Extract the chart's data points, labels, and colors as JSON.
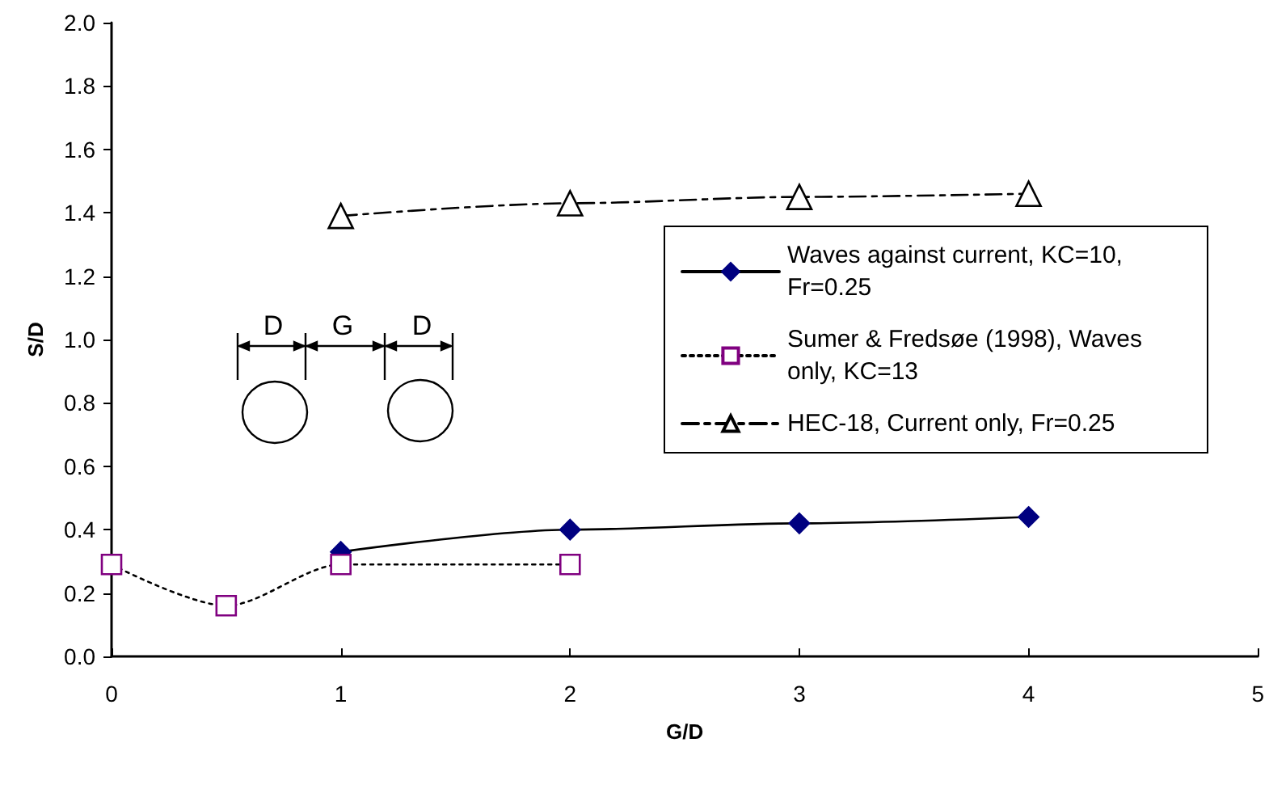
{
  "chart_data": {
    "type": "line",
    "xlabel": "G/D",
    "ylabel": "S/D",
    "xlim": [
      0,
      5
    ],
    "xticks": [
      0,
      1,
      2,
      3,
      4,
      5
    ],
    "ylim": [
      0,
      2
    ],
    "yticks": [
      {
        "value": 0,
        "label": "0.0"
      },
      {
        "value": 0.2,
        "label": "0.2"
      },
      {
        "value": 0.4,
        "label": "0.4"
      },
      {
        "value": 0.6,
        "label": "0.6"
      },
      {
        "value": 0.8,
        "label": "0.8"
      },
      {
        "value": 1,
        "label": "1.0"
      },
      {
        "value": 1.2,
        "label": "1.2"
      },
      {
        "value": 1.4,
        "label": "1.4"
      },
      {
        "value": 1.6,
        "label": "1.6"
      },
      {
        "value": 1.8,
        "label": "1.8"
      },
      {
        "value": 2,
        "label": "2.0"
      }
    ],
    "grid": false,
    "legend": "right",
    "annotations": [
      "D",
      "G",
      "D"
    ],
    "series": [
      {
        "name": "Waves against current, KC=10, Fr=0.25",
        "color": "#000080",
        "marker": "diamond",
        "line_style": "solid",
        "x": [
          1,
          2,
          3,
          4
        ],
        "values": [
          0.33,
          0.4,
          0.42,
          0.44
        ]
      },
      {
        "name": "Sumer & Fredsøe (1998), Waves only, KC=13",
        "color": "#800080",
        "marker": "square",
        "line_style": "dotted",
        "x": [
          0,
          0.5,
          1,
          2
        ],
        "values": [
          0.29,
          0.16,
          0.29,
          0.29
        ]
      },
      {
        "name": "HEC-18, Current only, Fr=0.25",
        "color": "#000000",
        "marker": "triangle",
        "line_style": "dashed",
        "x": [
          1,
          2,
          3,
          4
        ],
        "values": [
          1.39,
          1.43,
          1.45,
          1.46
        ]
      }
    ]
  }
}
